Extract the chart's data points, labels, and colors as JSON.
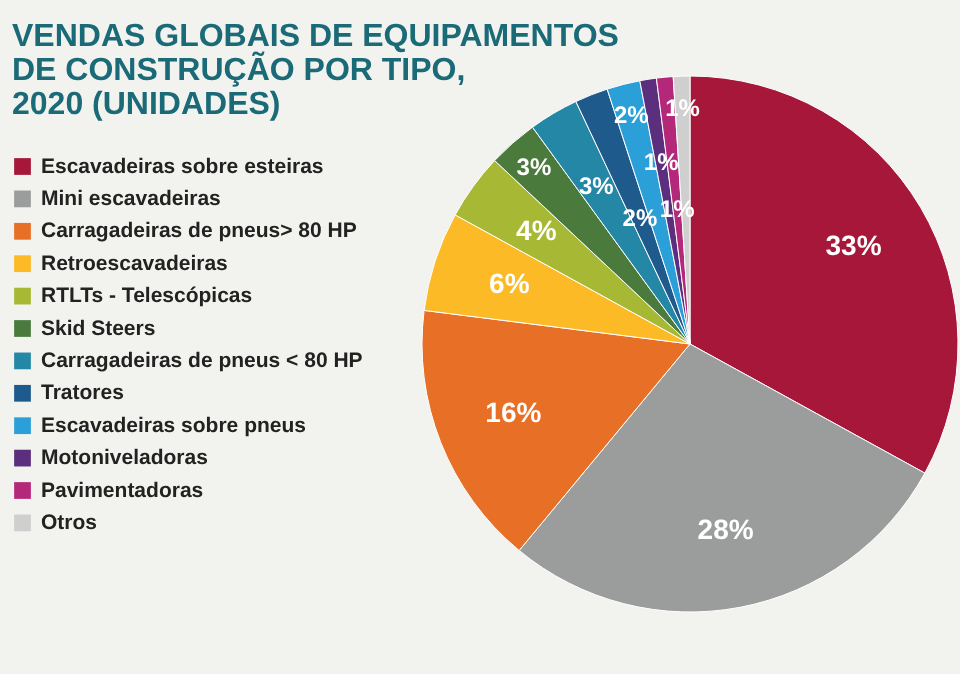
{
  "chart_data": {
    "type": "pie",
    "title": [
      "VENDAS GLOBAIS DE EQUIPAMENTOS",
      "DE CONSTRUÇÃO POR TIPO,",
      "2020 (UNIDADES)"
    ],
    "categories": [
      "Escavadeiras sobre esteiras",
      "Mini escavadeiras",
      "Carragadeiras de pneus> 80 HP",
      "Retroescavadeiras",
      "RTLTs - Telescópicas",
      "Skid Steers",
      "Carragadeiras de pneus < 80 HP",
      "Tratores",
      "Escavadeiras sobre pneus",
      "Motoniveladoras",
      "Pavimentadoras",
      "Otros"
    ],
    "values": [
      33,
      28,
      16,
      6,
      4,
      3,
      3,
      2,
      2,
      1,
      1,
      1
    ],
    "colors": [
      "#a6173a",
      "#9a9d9c",
      "#e86f26",
      "#fbba26",
      "#a7b934",
      "#4a7a3c",
      "#2487a6",
      "#1f5a8c",
      "#2a9fd8",
      "#5c2f7e",
      "#b4287a",
      "#cfcfcf"
    ],
    "value_labels": [
      "33%",
      "28%",
      "16%",
      "6%",
      "4%",
      "3%",
      "3%",
      "2%",
      "2%",
      "1%",
      "1%",
      "1%"
    ],
    "legend": "left"
  }
}
